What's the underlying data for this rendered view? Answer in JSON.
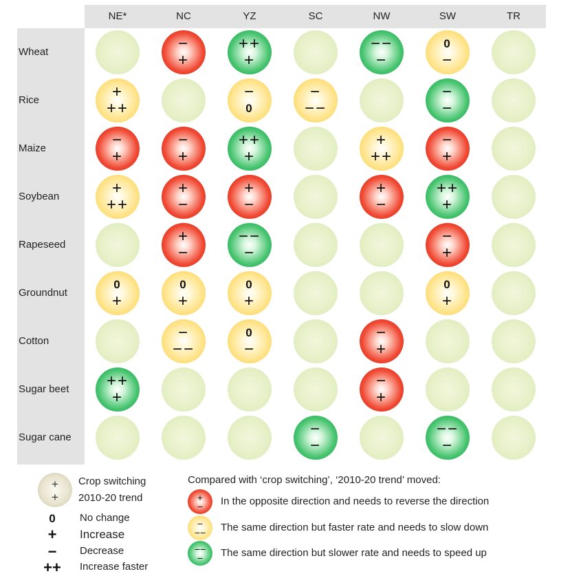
{
  "columns": [
    "NE*",
    "NC",
    "YZ",
    "SC",
    "NW",
    "SW",
    "TR"
  ],
  "rows": [
    {
      "label": "Wheat",
      "cells": [
        {
          "c": "empty",
          "t": "",
          "b": ""
        },
        {
          "c": "red",
          "t": "−",
          "b": "+"
        },
        {
          "c": "green",
          "t": "++",
          "b": "+"
        },
        {
          "c": "empty",
          "t": "",
          "b": ""
        },
        {
          "c": "green",
          "t": "−−",
          "b": "−"
        },
        {
          "c": "yellow",
          "t": "0",
          "b": "−"
        },
        {
          "c": "empty",
          "t": "",
          "b": ""
        }
      ]
    },
    {
      "label": "Rice",
      "cells": [
        {
          "c": "yellow",
          "t": "+",
          "b": "++"
        },
        {
          "c": "empty",
          "t": "",
          "b": ""
        },
        {
          "c": "yellow",
          "t": "−",
          "b": "0"
        },
        {
          "c": "yellow",
          "t": "−",
          "b": "−−"
        },
        {
          "c": "empty",
          "t": "",
          "b": ""
        },
        {
          "c": "green",
          "t": "−",
          "b": "−"
        },
        {
          "c": "empty",
          "t": "",
          "b": ""
        }
      ]
    },
    {
      "label": "Maize",
      "cells": [
        {
          "c": "red",
          "t": "−",
          "b": "+"
        },
        {
          "c": "red",
          "t": "−",
          "b": "+"
        },
        {
          "c": "green",
          "t": "++",
          "b": "+"
        },
        {
          "c": "empty",
          "t": "",
          "b": ""
        },
        {
          "c": "yellow",
          "t": "+",
          "b": "++"
        },
        {
          "c": "red",
          "t": "−",
          "b": "+"
        },
        {
          "c": "empty",
          "t": "",
          "b": ""
        }
      ]
    },
    {
      "label": "Soybean",
      "cells": [
        {
          "c": "yellow",
          "t": "+",
          "b": "++"
        },
        {
          "c": "red",
          "t": "+",
          "b": "−"
        },
        {
          "c": "red",
          "t": "+",
          "b": "−"
        },
        {
          "c": "empty",
          "t": "",
          "b": ""
        },
        {
          "c": "red",
          "t": "+",
          "b": "−"
        },
        {
          "c": "green",
          "t": "++",
          "b": "+"
        },
        {
          "c": "empty",
          "t": "",
          "b": ""
        }
      ]
    },
    {
      "label": "Rapeseed",
      "cells": [
        {
          "c": "empty",
          "t": "",
          "b": ""
        },
        {
          "c": "red",
          "t": "+",
          "b": "−"
        },
        {
          "c": "green",
          "t": "−−",
          "b": "−"
        },
        {
          "c": "empty",
          "t": "",
          "b": ""
        },
        {
          "c": "empty",
          "t": "",
          "b": ""
        },
        {
          "c": "red",
          "t": "−",
          "b": "+"
        },
        {
          "c": "empty",
          "t": "",
          "b": ""
        }
      ]
    },
    {
      "label": "Groundnut",
      "cells": [
        {
          "c": "yellow",
          "t": "0",
          "b": "+"
        },
        {
          "c": "yellow",
          "t": "0",
          "b": "+"
        },
        {
          "c": "yellow",
          "t": "0",
          "b": "+"
        },
        {
          "c": "empty",
          "t": "",
          "b": ""
        },
        {
          "c": "empty",
          "t": "",
          "b": ""
        },
        {
          "c": "yellow",
          "t": "0",
          "b": "+"
        },
        {
          "c": "empty",
          "t": "",
          "b": ""
        }
      ]
    },
    {
      "label": "Cotton",
      "cells": [
        {
          "c": "empty",
          "t": "",
          "b": ""
        },
        {
          "c": "yellow",
          "t": "−",
          "b": "−−"
        },
        {
          "c": "yellow",
          "t": "0",
          "b": "−"
        },
        {
          "c": "empty",
          "t": "",
          "b": ""
        },
        {
          "c": "red",
          "t": "−",
          "b": "+"
        },
        {
          "c": "empty",
          "t": "",
          "b": ""
        },
        {
          "c": "empty",
          "t": "",
          "b": ""
        }
      ]
    },
    {
      "label": "Sugar beet",
      "cells": [
        {
          "c": "green",
          "t": "++",
          "b": "+"
        },
        {
          "c": "empty",
          "t": "",
          "b": ""
        },
        {
          "c": "empty",
          "t": "",
          "b": ""
        },
        {
          "c": "empty",
          "t": "",
          "b": ""
        },
        {
          "c": "red",
          "t": "−",
          "b": "+"
        },
        {
          "c": "empty",
          "t": "",
          "b": ""
        },
        {
          "c": "empty",
          "t": "",
          "b": ""
        }
      ]
    },
    {
      "label": "Sugar cane",
      "cells": [
        {
          "c": "empty",
          "t": "",
          "b": ""
        },
        {
          "c": "empty",
          "t": "",
          "b": ""
        },
        {
          "c": "empty",
          "t": "",
          "b": ""
        },
        {
          "c": "green",
          "t": "−",
          "b": "−"
        },
        {
          "c": "empty",
          "t": "",
          "b": ""
        },
        {
          "c": "green",
          "t": "−−",
          "b": "−"
        },
        {
          "c": "empty",
          "t": "",
          "b": ""
        }
      ]
    }
  ],
  "legend": {
    "sample_top": "+",
    "sample_bottom": "+",
    "crop_switching": "Crop  switching",
    "trend": "2010-20 trend",
    "symbols": [
      {
        "symbol": "0",
        "label": "No change"
      },
      {
        "symbol": "+",
        "label": "Increase"
      },
      {
        "symbol": "−",
        "label": "Decrease"
      },
      {
        "symbol": "++",
        "label": "Increase faster"
      }
    ],
    "compare_title": "Compared with ‘crop switching’, ‘2010-20 trend’ moved:",
    "colors": [
      {
        "color": "red",
        "top": "+",
        "bottom": "−",
        "label": "In the opposite direction and needs to reverse the direction"
      },
      {
        "color": "yellow",
        "top": "−",
        "bottom": "−−",
        "label": "The same direction but faster rate and needs to slow down"
      },
      {
        "color": "green",
        "top": "−−",
        "bottom": "−",
        "label": "The same direction but slower rate and needs to speed up"
      }
    ]
  },
  "colors": {
    "red": "#e53524",
    "yellow": "#fbd768",
    "green": "#2fb45e",
    "empty": "#e4edc4",
    "band": "#e3e3e3"
  }
}
